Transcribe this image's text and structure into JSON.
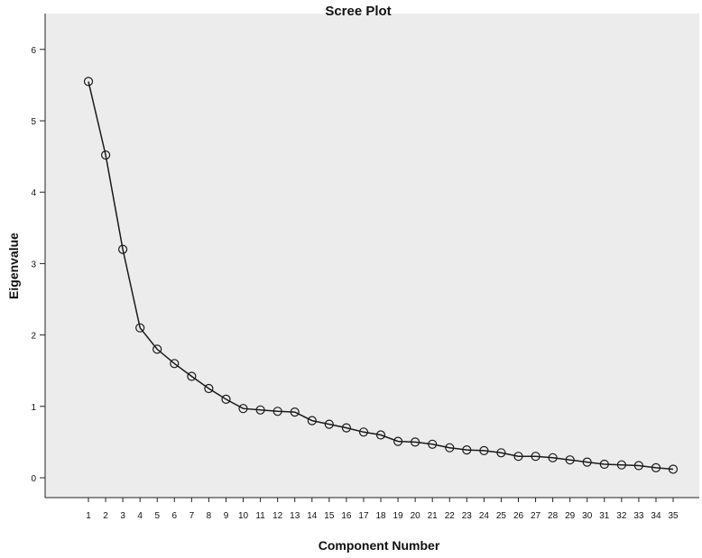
{
  "chart_data": {
    "type": "line",
    "title": "Scree Plot",
    "xlabel": "Component Number",
    "ylabel": "Eigenvalue",
    "ylim": [
      0,
      6
    ],
    "yticks": [
      0,
      1,
      2,
      3,
      4,
      5,
      6
    ],
    "grid": false,
    "markers": "open-circle",
    "x": [
      1,
      2,
      3,
      4,
      5,
      6,
      7,
      8,
      9,
      10,
      11,
      12,
      13,
      14,
      15,
      16,
      17,
      18,
      19,
      20,
      21,
      22,
      23,
      24,
      25,
      26,
      27,
      28,
      29,
      30,
      31,
      32,
      33,
      34,
      35
    ],
    "values": [
      5.55,
      4.52,
      3.2,
      2.1,
      1.8,
      1.6,
      1.42,
      1.25,
      1.1,
      0.97,
      0.95,
      0.93,
      0.92,
      0.8,
      0.75,
      0.7,
      0.64,
      0.6,
      0.51,
      0.5,
      0.47,
      0.42,
      0.39,
      0.38,
      0.35,
      0.3,
      0.3,
      0.28,
      0.25,
      0.22,
      0.19,
      0.18,
      0.17,
      0.14,
      0.12
    ]
  }
}
